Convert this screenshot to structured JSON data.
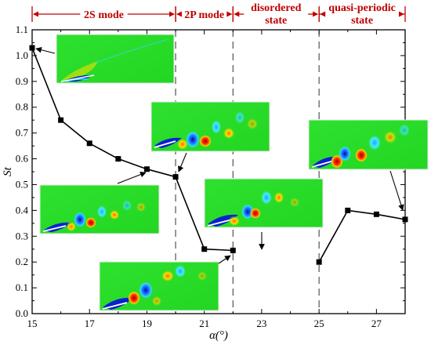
{
  "chart_data": {
    "type": "line",
    "xlabel": "α(°)",
    "ylabel": "St",
    "xlim": [
      15,
      28
    ],
    "ylim": [
      0.0,
      1.1
    ],
    "x_ticks": [
      15,
      17,
      19,
      21,
      23,
      25,
      27
    ],
    "y_ticks": [
      0.0,
      0.1,
      0.2,
      0.3,
      0.4,
      0.5,
      0.6,
      0.7,
      0.8,
      0.9,
      1.0,
      1.1
    ],
    "grid": false,
    "marker": "square",
    "line_color": "#000000",
    "regime_color": "#c00000",
    "series": [
      {
        "segments": [
          {
            "x": [
              15,
              16,
              17,
              18,
              19,
              20,
              21,
              22
            ],
            "y": [
              1.03,
              0.75,
              0.66,
              0.6,
              0.56,
              0.53,
              0.25,
              0.245
            ]
          },
          {
            "x": [
              25,
              26,
              27,
              28
            ],
            "y": [
              0.2,
              0.4,
              0.385,
              0.365
            ]
          }
        ]
      }
    ],
    "boundaries": [
      20,
      22,
      25
    ],
    "regimes": [
      {
        "label": "2S mode",
        "from": 15,
        "to": 20
      },
      {
        "label": "2P mode",
        "from": 20,
        "to": 22
      },
      {
        "label": "disordered\nstate",
        "from": 22,
        "to": 25
      },
      {
        "label": "quasi-periodic\nstate",
        "from": 25,
        "to": 28
      }
    ],
    "insets": [
      {
        "name": "inset-alpha-15",
        "points_to": [
          15,
          1.03
        ]
      },
      {
        "name": "inset-alpha-19",
        "points_to": [
          19,
          0.56
        ]
      },
      {
        "name": "inset-alpha-20",
        "points_to": [
          20,
          0.53
        ]
      },
      {
        "name": "inset-alpha-22",
        "points_to": [
          22,
          0.245
        ]
      },
      {
        "name": "inset-alpha-23",
        "points_to": [
          22.8,
          0.27
        ]
      },
      {
        "name": "inset-alpha-28",
        "points_to": [
          28,
          0.365
        ]
      }
    ]
  }
}
